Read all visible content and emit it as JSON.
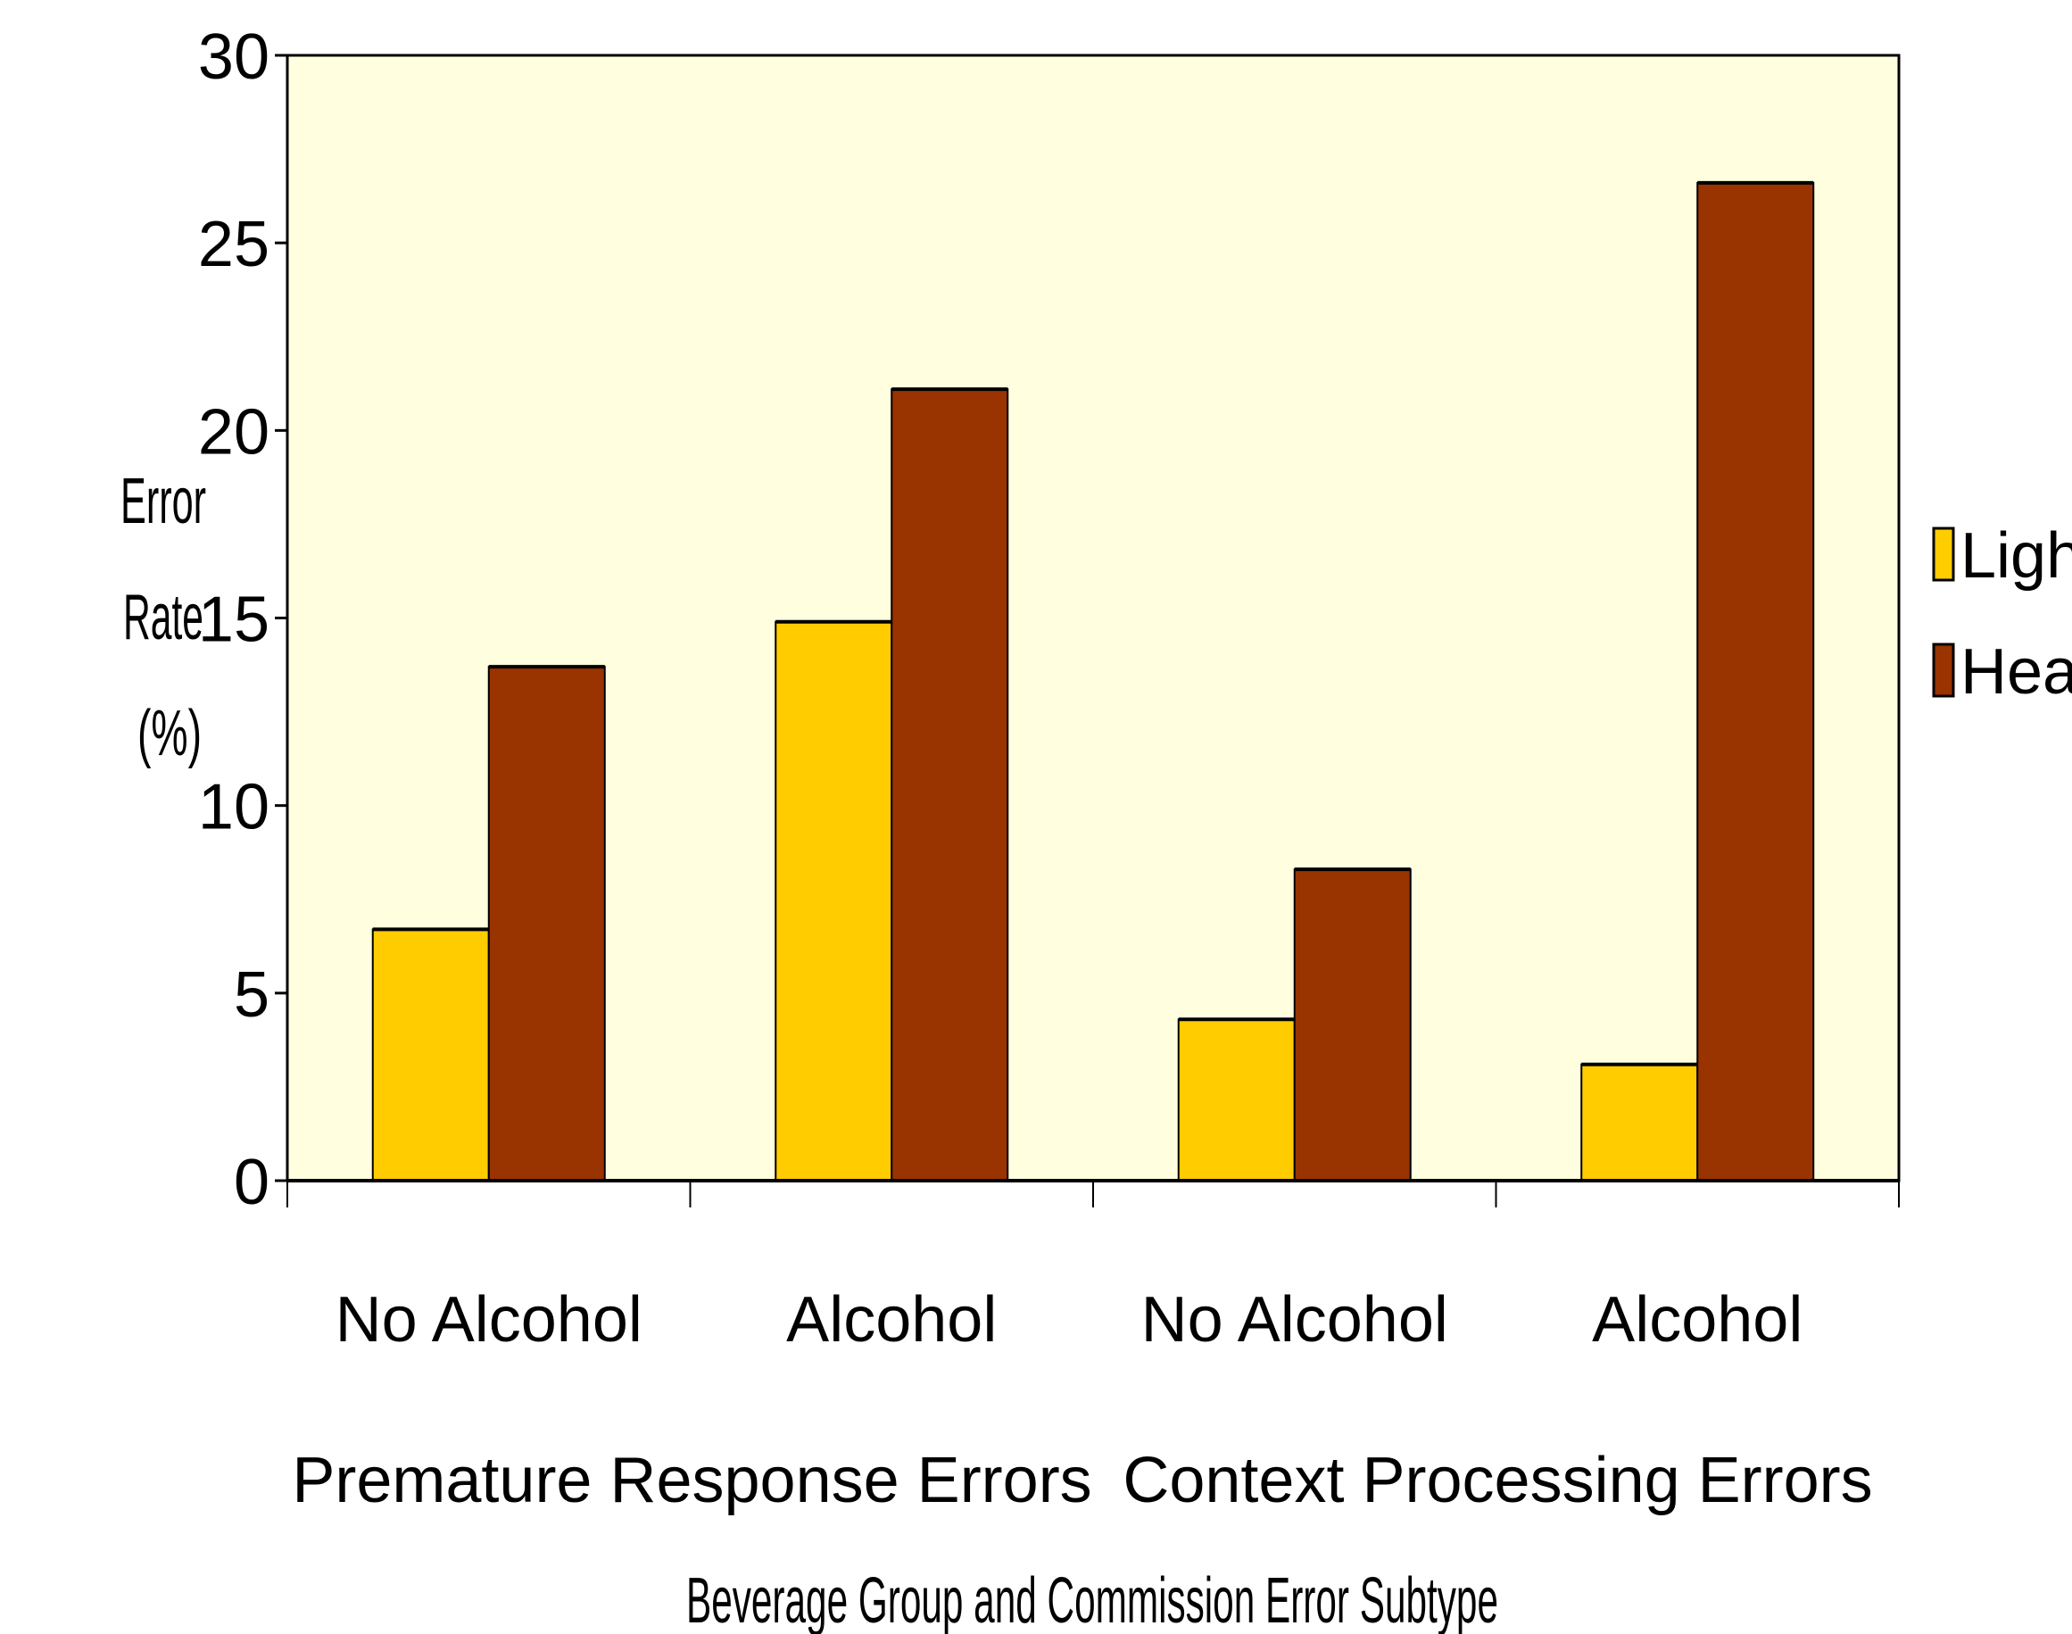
{
  "chart_data": {
    "type": "bar",
    "title": "",
    "xlabel": "Beverage Group and Commission Error Subtype",
    "ylabel_lines": [
      "Error",
      "Rate",
      "(%)"
    ],
    "ylim": [
      0,
      30
    ],
    "yticks": [
      0,
      5,
      10,
      15,
      20,
      25,
      30
    ],
    "categories": [
      "No Alcohol",
      "Alcohol",
      "No Alcohol",
      "Alcohol"
    ],
    "groups": [
      {
        "label": "Premature Response Errors",
        "categories": [
          0,
          1
        ]
      },
      {
        "label": "Context Processing Errors",
        "categories": [
          2,
          3
        ]
      }
    ],
    "series": [
      {
        "name": "Light",
        "color": "#FFCC00",
        "values": [
          6.7,
          14.9,
          4.3,
          3.1
        ]
      },
      {
        "name": "Heavy",
        "color": "#993300",
        "values": [
          13.7,
          21.1,
          8.3,
          26.6
        ]
      }
    ],
    "plot_background": "#FFFFE0",
    "legend": "right",
    "grid": false
  }
}
